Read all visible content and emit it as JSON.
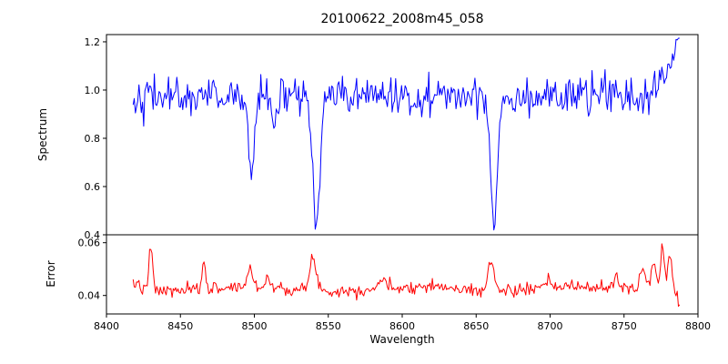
{
  "figure": {
    "title": "20100622_2008m45_058",
    "xlabel": "Wavelength",
    "background": "#ffffff",
    "spine_color": "#000000"
  },
  "chart_data": [
    {
      "type": "line",
      "series_name": "spectrum-line",
      "title": "20100622_2008m45_058",
      "ylabel": "Spectrum",
      "legend": "none",
      "grid": false,
      "color": "#0000ff",
      "xlim": [
        8400,
        8800
      ],
      "ylim": [
        0.4,
        1.23
      ],
      "xticks": [
        8400,
        8450,
        8500,
        8550,
        8600,
        8650,
        8700,
        8750,
        8800
      ],
      "xtick_labels": [
        "8400",
        "8450",
        "8500",
        "8550",
        "8600",
        "8650",
        "8700",
        "8750",
        "8800"
      ],
      "yticks": [
        0.4,
        0.6,
        0.8,
        1.0,
        1.2
      ],
      "ytick_labels": [
        "0.4",
        "0.6",
        "0.8",
        "1.0",
        "1.2"
      ],
      "x_start": 8418,
      "x_end": 8788,
      "x_step": 0.8,
      "baseline": 0.975,
      "noise_sigma": 0.038,
      "noise_seed": 42,
      "absorption_lines": [
        {
          "center": 8498.0,
          "depth": 0.33,
          "sigma": 2.0,
          "min_flux": 0.65
        },
        {
          "center": 8514.0,
          "depth": 0.1,
          "sigma": 1.6,
          "min_flux": 0.87
        },
        {
          "center": 8542.1,
          "depth": 0.55,
          "sigma": 2.4,
          "min_flux": 0.44
        },
        {
          "center": 8662.1,
          "depth": 0.53,
          "sigma": 2.2,
          "min_flux": 0.45
        }
      ],
      "edge_rise": {
        "center": 8789,
        "amplitude": 0.24,
        "sigma": 8,
        "max_flux": 1.21
      },
      "clip": [
        0.42,
        1.215
      ]
    },
    {
      "type": "line",
      "series_name": "error-line",
      "ylabel": "Error",
      "legend": "none",
      "grid": false,
      "color": "#ff0000",
      "xlim": [
        8400,
        8800
      ],
      "ylim": [
        0.033,
        0.063
      ],
      "xticks": [
        8400,
        8450,
        8500,
        8550,
        8600,
        8650,
        8700,
        8750,
        8800
      ],
      "xtick_labels": [
        "8400",
        "8450",
        "8500",
        "8550",
        "8600",
        "8650",
        "8700",
        "8750",
        "8800"
      ],
      "yticks": [
        0.04,
        0.06
      ],
      "ytick_labels": [
        "0.04",
        "0.06"
      ],
      "x_start": 8418,
      "x_end": 8788,
      "x_step": 0.8,
      "baseline": 0.0425,
      "noise_sigma": 0.0012,
      "noise_seed": 7,
      "slow_variation": {
        "amplitude": 0.0008,
        "period": 110
      },
      "spikes": [
        {
          "center": 8421,
          "amplitude": 0.003,
          "sigma": 1.5
        },
        {
          "center": 8430,
          "amplitude": 0.0165,
          "sigma": 1.2,
          "peak_value": 0.06
        },
        {
          "center": 8466,
          "amplitude": 0.0105,
          "sigma": 1.2,
          "peak_value": 0.053
        },
        {
          "center": 8497,
          "amplitude": 0.0075,
          "sigma": 1.6,
          "peak_value": 0.05
        },
        {
          "center": 8509,
          "amplitude": 0.004,
          "sigma": 1.5
        },
        {
          "center": 8540,
          "amplitude": 0.0125,
          "sigma": 2.2,
          "peak_value": 0.057
        },
        {
          "center": 8586,
          "amplitude": 0.0035,
          "sigma": 2.0
        },
        {
          "center": 8620,
          "amplitude": 0.002,
          "sigma": 2.0
        },
        {
          "center": 8660,
          "amplitude": 0.0105,
          "sigma": 2.2,
          "peak_value": 0.055
        },
        {
          "center": 8700,
          "amplitude": 0.002,
          "sigma": 2.0
        },
        {
          "center": 8745,
          "amplitude": 0.0045,
          "sigma": 2.0
        },
        {
          "center": 8763,
          "amplitude": 0.009,
          "sigma": 2.0
        },
        {
          "center": 8770,
          "amplitude": 0.011,
          "sigma": 1.5,
          "peak_value": 0.055
        },
        {
          "center": 8776,
          "amplitude": 0.0175,
          "sigma": 1.3,
          "peak_value": 0.061
        },
        {
          "center": 8781,
          "amplitude": 0.0145,
          "sigma": 1.3,
          "peak_value": 0.059
        }
      ],
      "end_drop": {
        "x": 8786,
        "value": 0.0365
      },
      "clip": [
        0.034,
        0.0615
      ]
    }
  ]
}
